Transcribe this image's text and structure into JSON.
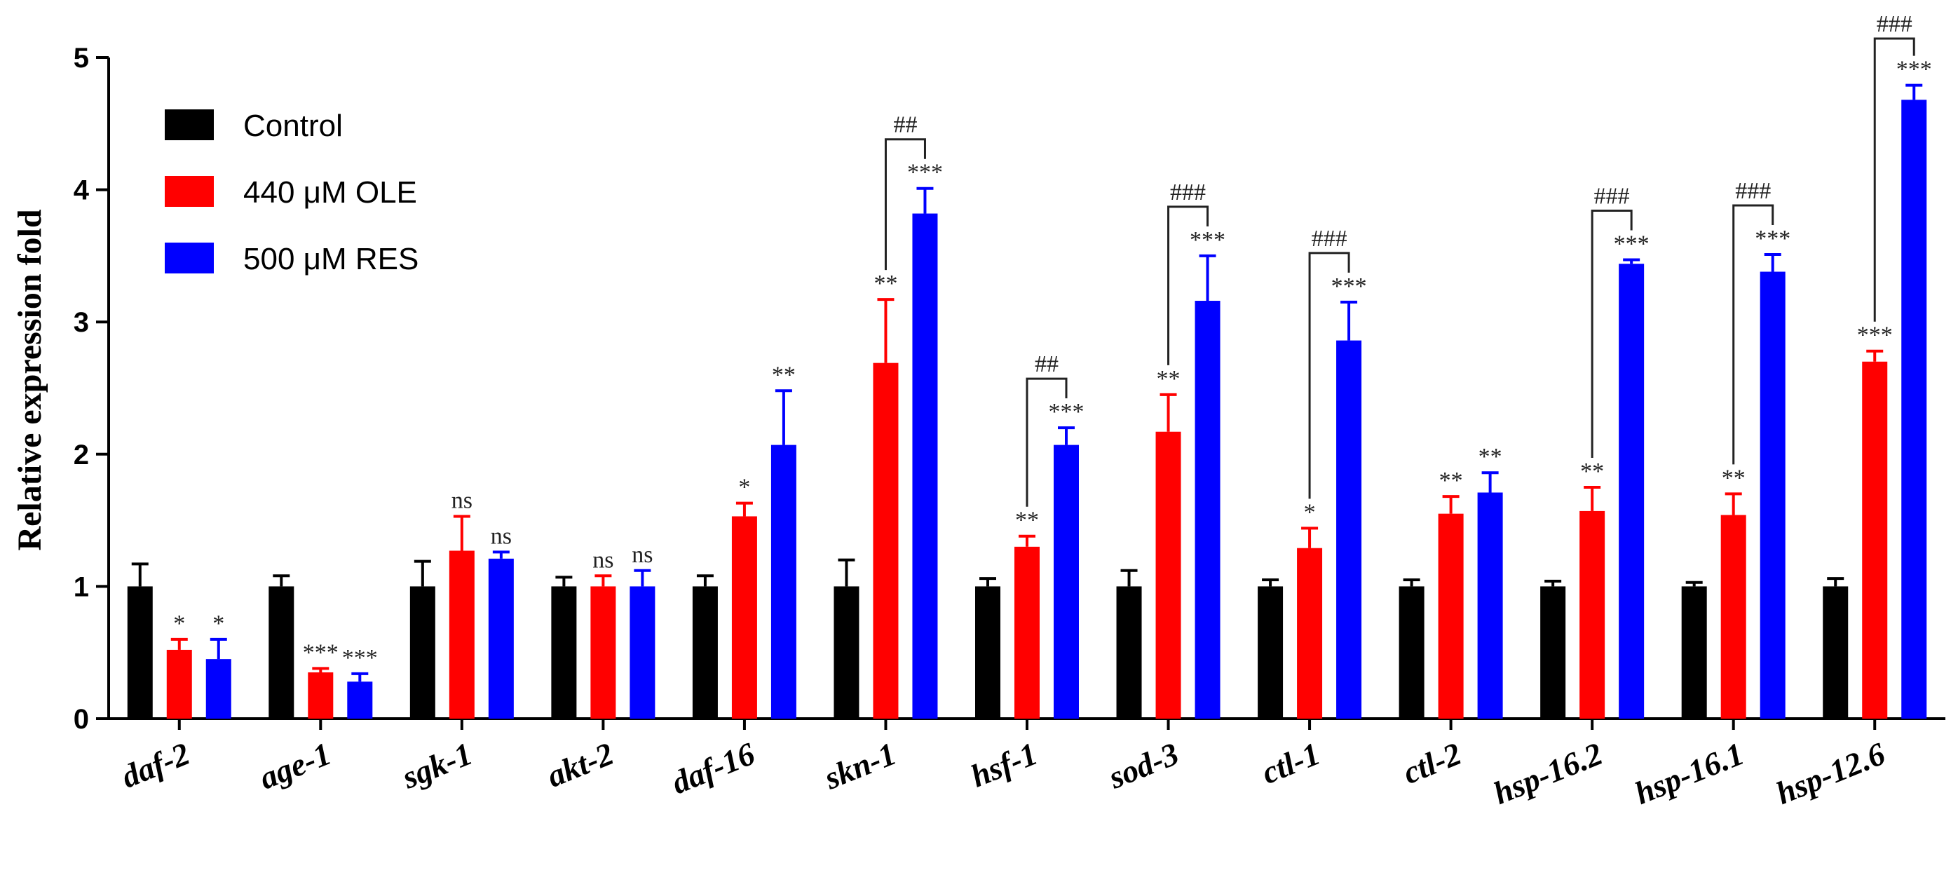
{
  "chart_data": {
    "type": "bar",
    "ylabel": "Relative expression fold",
    "ylim": [
      0,
      5
    ],
    "yticks": [
      "0",
      "1",
      "2",
      "3",
      "4",
      "5"
    ],
    "categories": [
      "daf-2",
      "age-1",
      "sgk-1",
      "akt-2",
      "daf-16",
      "skn-1",
      "hsf-1",
      "sod-3",
      "ctl-1",
      "ctl-2",
      "hsp-16.2",
      "hsp-16.1",
      "hsp-12.6"
    ],
    "legend_position": "top-left",
    "series": [
      {
        "name": "Control",
        "color": "#000000",
        "values": [
          1.0,
          1.0,
          1.0,
          1.0,
          1.0,
          1.0,
          1.0,
          1.0,
          1.0,
          1.0,
          1.0,
          1.0,
          1.0
        ],
        "errors": [
          0.17,
          0.08,
          0.19,
          0.07,
          0.08,
          0.2,
          0.06,
          0.12,
          0.05,
          0.05,
          0.04,
          0.03,
          0.06
        ],
        "significance": [
          "",
          "",
          "",
          "",
          "",
          "",
          "",
          "",
          "",
          "",
          "",
          "",
          ""
        ]
      },
      {
        "name": "440 μM OLE",
        "color": "#ff0000",
        "values": [
          0.52,
          0.35,
          1.27,
          1.0,
          1.53,
          2.69,
          1.3,
          2.17,
          1.29,
          1.55,
          1.57,
          1.54,
          2.7
        ],
        "errors": [
          0.08,
          0.03,
          0.26,
          0.08,
          0.1,
          0.48,
          0.08,
          0.28,
          0.15,
          0.13,
          0.18,
          0.16,
          0.08
        ],
        "significance": [
          "*",
          "***",
          "ns",
          "ns",
          "*",
          "**",
          "**",
          "**",
          "*",
          "**",
          "**",
          "**",
          "***"
        ]
      },
      {
        "name": "500 μM RES",
        "color": "#0000ff",
        "values": [
          0.45,
          0.28,
          1.21,
          1.0,
          2.07,
          3.82,
          2.07,
          3.16,
          2.86,
          1.71,
          3.44,
          3.38,
          4.68
        ],
        "errors": [
          0.15,
          0.06,
          0.05,
          0.12,
          0.41,
          0.19,
          0.13,
          0.34,
          0.29,
          0.15,
          0.03,
          0.13,
          0.11
        ],
        "significance": [
          "*",
          "***",
          "ns",
          "ns",
          "**",
          "***",
          "***",
          "***",
          "***",
          "**",
          "***",
          "***",
          "***"
        ]
      }
    ],
    "comparisons": [
      {
        "category": "skn-1",
        "label": "##"
      },
      {
        "category": "hsf-1",
        "label": "##"
      },
      {
        "category": "sod-3",
        "label": "###"
      },
      {
        "category": "ctl-1",
        "label": "###"
      },
      {
        "category": "hsp-16.2",
        "label": "###"
      },
      {
        "category": "hsp-16.1",
        "label": "###"
      },
      {
        "category": "hsp-12.6",
        "label": "###"
      }
    ]
  }
}
